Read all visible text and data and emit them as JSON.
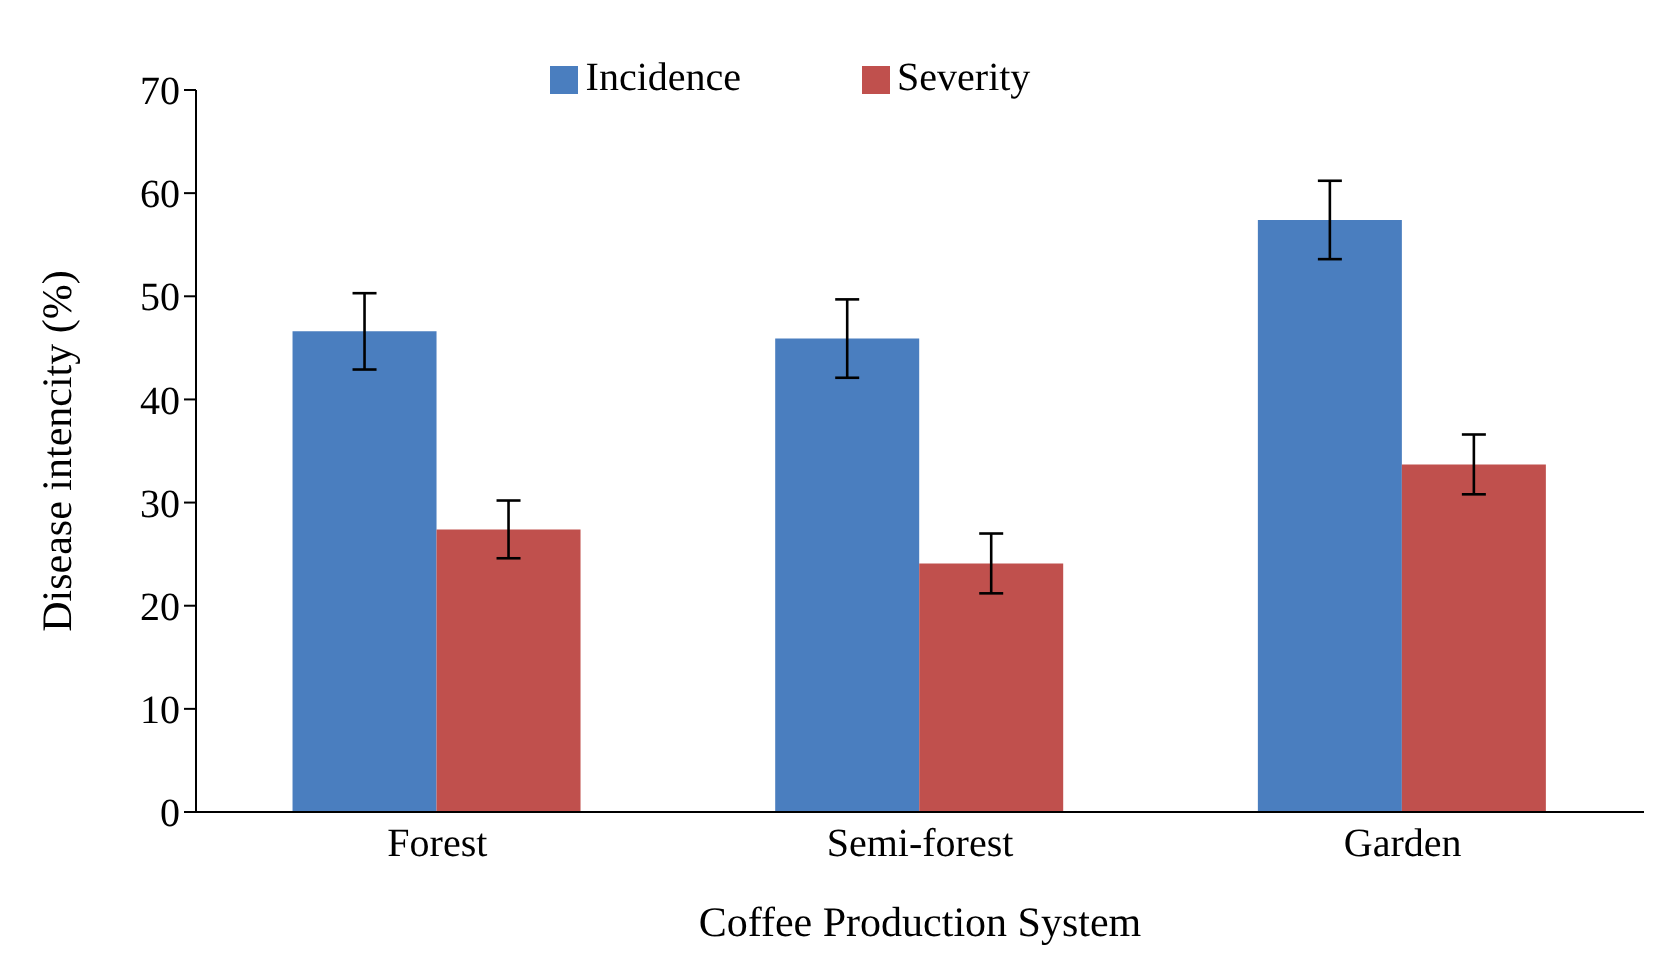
{
  "chart_data": {
    "type": "bar",
    "xlabel": "Coffee Production System",
    "ylabel": "Disease intencity (%)",
    "categories": [
      "Forest",
      "Semi-forest",
      "Garden"
    ],
    "series": [
      {
        "name": "Incidence",
        "color": "#4a7ebf",
        "values": [
          46.6,
          45.9,
          57.4
        ],
        "errors": [
          3.7,
          3.8,
          3.8
        ]
      },
      {
        "name": "Severity",
        "color": "#c0504d",
        "values": [
          27.4,
          24.1,
          33.7
        ],
        "errors": [
          2.8,
          2.9,
          2.9
        ]
      }
    ],
    "ylim": [
      0,
      70
    ],
    "yticks": [
      0,
      10,
      20,
      30,
      40,
      50,
      60,
      70
    ],
    "grid": false,
    "legend": "top"
  }
}
